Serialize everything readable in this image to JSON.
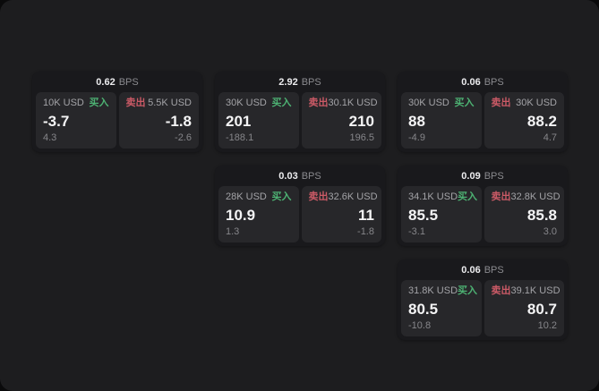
{
  "theme": {
    "outer_bg": "#0a0a0b",
    "window_bg": "#1d1d1f",
    "card_bg": "#19191c",
    "panel_bg": "#27272a",
    "green": "#4db273",
    "red": "#cb5a66"
  },
  "labels": {
    "buy": "买入",
    "sell": "卖出",
    "bps_unit": "BPS"
  },
  "cards": [
    {
      "spread_bps": "0.62",
      "buy": {
        "amount": "10K USD",
        "price": "-3.7",
        "delta": "4.3"
      },
      "sell": {
        "amount": "5.5K USD",
        "price": "-1.8",
        "delta": "-2.6"
      }
    },
    {
      "spread_bps": "2.92",
      "buy": {
        "amount": "30K USD",
        "price": "201",
        "delta": "-188.1"
      },
      "sell": {
        "amount": "30.1K USD",
        "price": "210",
        "delta": "196.5"
      }
    },
    {
      "spread_bps": "0.06",
      "buy": {
        "amount": "30K USD",
        "price": "88",
        "delta": "-4.9"
      },
      "sell": {
        "amount": "30K USD",
        "price": "88.2",
        "delta": "4.7"
      }
    },
    {
      "spread_bps": "0.03",
      "buy": {
        "amount": "28K USD",
        "price": "10.9",
        "delta": "1.3"
      },
      "sell": {
        "amount": "32.6K USD",
        "price": "11",
        "delta": "-1.8"
      }
    },
    {
      "spread_bps": "0.09",
      "buy": {
        "amount": "34.1K USD",
        "price": "85.5",
        "delta": "-3.1"
      },
      "sell": {
        "amount": "32.8K USD",
        "price": "85.8",
        "delta": "3.0"
      }
    },
    {
      "spread_bps": "0.06",
      "buy": {
        "amount": "31.8K USD",
        "price": "80.5",
        "delta": "-10.8"
      },
      "sell": {
        "amount": "39.1K USD",
        "price": "80.7",
        "delta": "10.2"
      }
    }
  ]
}
